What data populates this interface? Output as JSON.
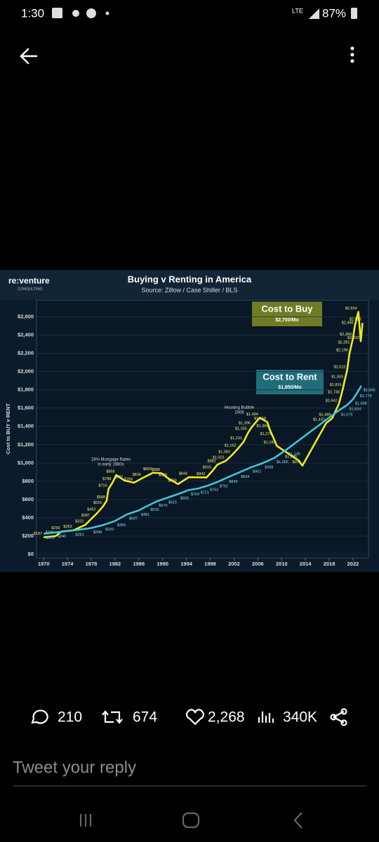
{
  "status_bar": {
    "time": "1:30",
    "network": "LTE",
    "battery": "87%"
  },
  "chart_data": {
    "type": "line",
    "logo": "re:venture",
    "logo_sub": "CONSULTING",
    "title": "Buying v Renting in America",
    "subtitle": "Source: Zillow / Case Shiller / BLS",
    "ylabel": "Cost to BUY v RENT",
    "annotations": [
      "Cost to Buy",
      "$2,700/Mo",
      "Cost to Rent",
      "$1,850/Mo",
      "Housing Bubble",
      "2006",
      "18% Mortgage Rates",
      "in early 1980s"
    ],
    "xlim": [
      1968.8,
      2024.6
    ],
    "xticks": [
      1970,
      1974,
      1978,
      1982,
      1986,
      1990,
      1994,
      1998,
      2002,
      2006,
      2010,
      2014,
      2018,
      2022
    ],
    "ylim": [
      0,
      2750
    ],
    "yticks": [
      {
        "value": 0,
        "label": "$0"
      },
      {
        "value": 200,
        "label": "$200"
      },
      {
        "value": 400,
        "label": "$400"
      },
      {
        "value": 600,
        "label": "$600"
      },
      {
        "value": 800,
        "label": "$800"
      },
      {
        "value": 1000,
        "label": "$1,000"
      },
      {
        "value": 1200,
        "label": "$1,200"
      },
      {
        "value": 1400,
        "label": "$1,400"
      },
      {
        "value": 1600,
        "label": "$1,600"
      },
      {
        "value": 1800,
        "label": "$1,800"
      },
      {
        "value": 2000,
        "label": "$2,000"
      },
      {
        "value": 2200,
        "label": "$2,200"
      },
      {
        "value": 2400,
        "label": "$2,400"
      },
      {
        "value": 2600,
        "label": "$2,600"
      }
    ],
    "grid": true,
    "series": [
      {
        "name": "Cost to Buy",
        "color": "#f0e81a",
        "x": [
          1970,
          1972,
          1973,
          1975,
          1977,
          1978,
          1979,
          1980,
          1980.6,
          1980.9,
          1981.6,
          1982.2,
          1983.6,
          1985.2,
          1986.6,
          1988.4,
          1989.8,
          1991,
          1992.6,
          1994.4,
          1997.4,
          1998.4,
          1999.2,
          2000.6,
          2001.6,
          2002.6,
          2003.6,
          2004.4,
          2005,
          2006.3,
          2007.6,
          2008,
          2008.6,
          2009.2,
          2012.8,
          2013.5,
          2017.5,
          2018.5,
          2019.6,
          2020,
          2020.3,
          2020.6,
          2021,
          2021.4,
          2021.7,
          2022,
          2022.3,
          2022.9,
          2023.3,
          2023.6
        ],
        "values": [
          187,
          199,
          250,
          263,
          322,
          387,
          452,
          526,
          588,
          715,
          788,
          868,
          807,
          784,
          834,
          893,
          888,
          828,
          769,
          844,
          842,
          915,
          982,
          1023,
          1082,
          1152,
          1231,
          1335,
          1396,
          1494,
          1448,
          1366,
          1279,
          1187,
          1030,
          971,
          1437,
          1489,
          1642,
          1736,
          1816,
          1903,
          2012,
          2196,
          2281,
          2369,
          2498,
          2654,
          2332,
          2533
        ],
        "value_labels": [
          "$187",
          "$199",
          "$250",
          "$263",
          "$322",
          "$387",
          "$452",
          "$526",
          "$588",
          "$715",
          "$788",
          "$868",
          "$807",
          "$784",
          "$834",
          "$893",
          "$888",
          "$828",
          "$769",
          "$844",
          "$842",
          "$915",
          "$982",
          "$1,023",
          "$1,082",
          "$1,152",
          "$1,231",
          "$1,335",
          "$1,396",
          "$1,494",
          "$1,448",
          "$1,366",
          "$1,279",
          "$1,187",
          "$1,030",
          "$971",
          "$1,437",
          "$1,489",
          "$1,642",
          "$1,736",
          "$1,816",
          "$1,903",
          "$2,012",
          "$2,196",
          "$2,281",
          "$2,369",
          "$2,498",
          "$2,654",
          "$2,332",
          "$2,533"
        ]
      },
      {
        "name": "Cost to Rent",
        "color": "#3fc6d6",
        "x": [
          1970,
          1972,
          1975,
          1978,
          1980,
          1982,
          1984,
          1986,
          1987.6,
          1989,
          1990.6,
          1992.6,
          1994.4,
          1996,
          1997.6,
          1999.2,
          2000.8,
          2002.8,
          2004.8,
          2006.8,
          2008.8,
          2010.8,
          2019.6,
          2021,
          2022,
          2022.8,
          2023.4
        ],
        "values": [
          225,
          240,
          261,
          288,
          320,
          365,
          437,
          481,
          535,
          579,
          615,
          660,
          704,
          721,
          752,
          792,
          839,
          894,
          951,
          998,
          1056,
          1145,
          1575,
          1634,
          1698,
          1779,
          1845
        ],
        "value_labels": [
          "$225",
          "$240",
          "$261",
          "$288",
          "$320",
          "$365",
          "$437",
          "$481",
          "$535",
          "$579",
          "$615",
          "$660",
          "$704",
          "$721",
          "$752",
          "$792",
          "$839",
          "$894",
          "$951",
          "$998",
          "$1,056",
          "$1,145",
          "$1,575",
          "$1,634",
          "$1,698",
          "$1,779",
          "$1,845"
        ]
      }
    ]
  },
  "actions": {
    "replies": "210",
    "retweets": "674",
    "likes": "2,268",
    "views": "340K"
  },
  "reply_placeholder": "Tweet your reply"
}
